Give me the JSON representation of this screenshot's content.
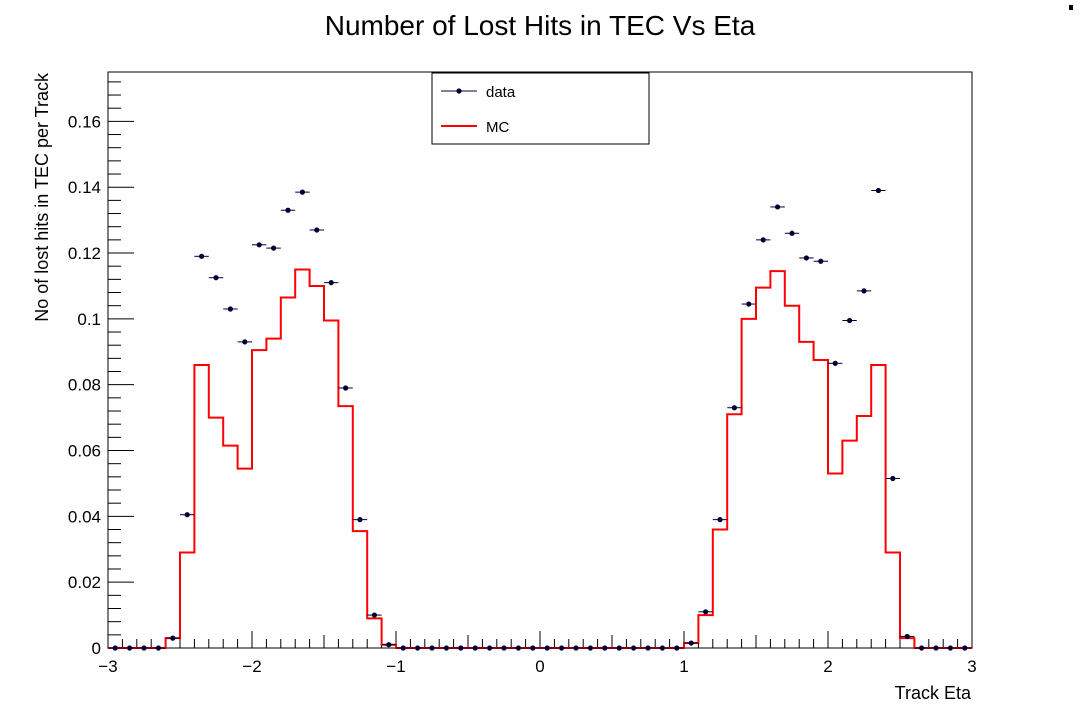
{
  "chart_data": {
    "type": "histogram",
    "title": "Number of Lost Hits in TEC Vs Eta",
    "xlabel": "Track Eta",
    "ylabel": "No of lost hits in TEC per Track",
    "xlim": [
      -3,
      3
    ],
    "ylim": [
      0,
      0.175
    ],
    "x_ticks": [
      -3,
      -2,
      -1,
      0,
      1,
      2,
      3
    ],
    "x_tick_labels": [
      "−3",
      "−2",
      "−1",
      "0",
      "1",
      "2",
      "3"
    ],
    "y_ticks": [
      0,
      0.02,
      0.04,
      0.06,
      0.08,
      0.1,
      0.12,
      0.14,
      0.16
    ],
    "y_tick_labels": [
      "0",
      "0.02",
      "0.04",
      "0.06",
      "0.08",
      "0.1",
      "0.12",
      "0.14",
      "0.16"
    ],
    "bin_edges_start": -3,
    "bin_width": 0.1,
    "legend": {
      "position": "top-center",
      "entries": [
        "data",
        "MC"
      ]
    },
    "series": [
      {
        "name": "data",
        "style": "markers",
        "color": "#000033",
        "values": [
          0,
          0,
          0,
          0,
          0.003,
          0.0405,
          0.119,
          0.1125,
          0.103,
          0.093,
          0.1225,
          0.1215,
          0.133,
          0.1385,
          0.127,
          0.111,
          0.079,
          0.039,
          0.01,
          0.001,
          0,
          0,
          0,
          0,
          0,
          0,
          0,
          0,
          0,
          0,
          0,
          0,
          0,
          0,
          0,
          0,
          0,
          0,
          0,
          0,
          0.0015,
          0.011,
          0.039,
          0.073,
          0.1045,
          0.124,
          0.134,
          0.126,
          0.1185,
          0.1175,
          0.0865,
          0.0995,
          0.1085,
          0.139,
          0.0515,
          0.0035,
          0,
          0,
          0,
          0
        ]
      },
      {
        "name": "MC",
        "style": "step",
        "color": "#ff0000",
        "values": [
          0,
          0,
          0,
          0,
          0.003,
          0.029,
          0.086,
          0.07,
          0.0615,
          0.0545,
          0.0905,
          0.094,
          0.1065,
          0.115,
          0.11,
          0.0995,
          0.0735,
          0.0355,
          0.009,
          0.001,
          0,
          0,
          0,
          0,
          0,
          0,
          0,
          0,
          0,
          0,
          0,
          0,
          0,
          0,
          0,
          0,
          0,
          0,
          0,
          0,
          0.0015,
          0.01,
          0.036,
          0.071,
          0.1,
          0.1095,
          0.1145,
          0.104,
          0.093,
          0.0875,
          0.053,
          0.063,
          0.0705,
          0.086,
          0.029,
          0.003,
          0,
          0,
          0,
          0
        ]
      }
    ]
  }
}
